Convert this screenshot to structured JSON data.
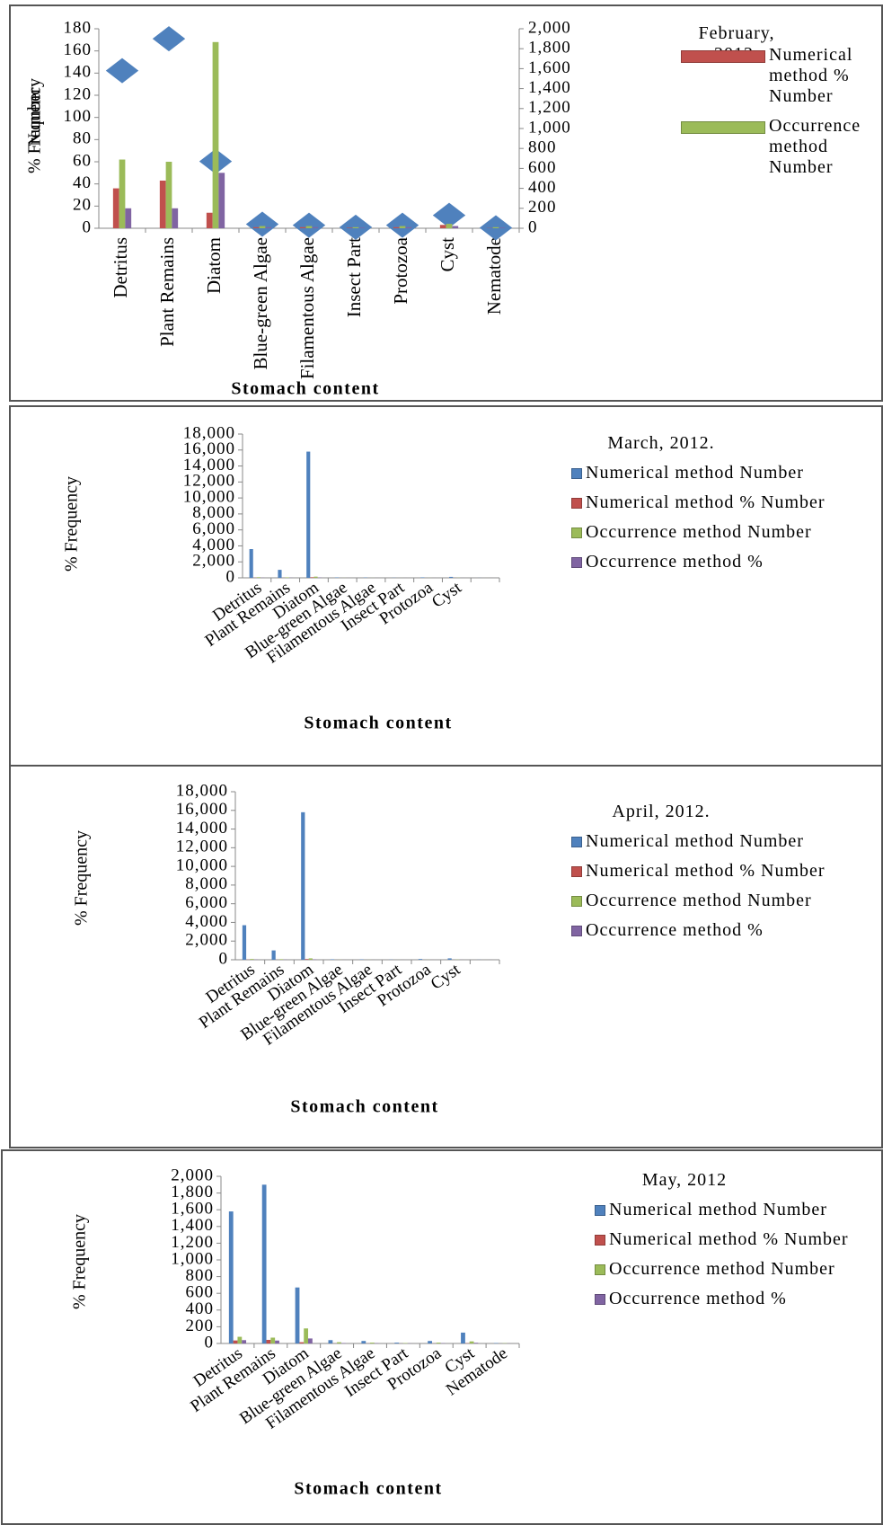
{
  "chart_data": [
    {
      "type": "bar",
      "legend_title": "February, 2012.",
      "xlabel": "Stomach content",
      "ylabel": "% Frequency",
      "y2label": "Number",
      "categories": [
        "Detritus",
        "Plant Remains",
        "Diatom",
        "Blue-green Algae",
        "Filamentous Algae",
        "Insect Part",
        "Protozoa",
        "Cyst",
        "Nematode"
      ],
      "series": [
        {
          "type": "scatter",
          "axis": "y2",
          "color": "#4f81bd",
          "values": [
            1580,
            1900,
            670,
            40,
            30,
            10,
            30,
            130,
            5
          ]
        },
        {
          "name": "Numerical method % Number",
          "color": "#c0504d",
          "values": [
            36,
            43,
            14,
            1,
            1,
            0.5,
            1,
            3,
            0.2
          ]
        },
        {
          "name": "Occurrence method Number",
          "color": "#9bbb59",
          "values": [
            62,
            60,
            168,
            2,
            2,
            1,
            2,
            4,
            1
          ]
        },
        {
          "color": "#8064a2",
          "values": [
            18,
            18,
            50,
            1,
            1,
            0.5,
            1,
            2,
            0.5
          ]
        }
      ],
      "ylim": [
        0,
        180
      ],
      "yticks": [
        0,
        20,
        40,
        60,
        80,
        100,
        120,
        140,
        160,
        180
      ],
      "y2lim": [
        0,
        2000
      ],
      "y2ticks": [
        0,
        200,
        400,
        600,
        800,
        {
          "value": 1000,
          "label": "1,000"
        },
        {
          "value": 1200,
          "label": "1,200"
        },
        {
          "value": 1400,
          "label": "1,400"
        },
        {
          "value": 1600,
          "label": "1,600"
        },
        {
          "value": 1800,
          "label": "1,800"
        },
        {
          "value": 2000,
          "label": "2,000"
        }
      ]
    },
    {
      "type": "bar",
      "legend_title": "March, 2012.",
      "xlabel": "Stomach content",
      "ylabel": "% Frequency",
      "categories": [
        "Detritus",
        "Plant Remains",
        "Diatom",
        "Blue-green Algae",
        "Filamentous Algae",
        "Insect Part",
        "Protozoa",
        "Cyst",
        null
      ],
      "series": [
        {
          "name": "Numerical method Number",
          "color": "#4f81bd",
          "values": [
            3600,
            1000,
            15800,
            50,
            40,
            20,
            60,
            120,
            10
          ]
        },
        {
          "name": "Numerical method % Number",
          "color": "#c0504d",
          "values": [
            18,
            5,
            76,
            0.3,
            0.2,
            0.1,
            0.3,
            0.6,
            0.1
          ]
        },
        {
          "name": "Occurrence method Number",
          "color": "#9bbb59",
          "values": [
            80,
            60,
            150,
            10,
            8,
            4,
            10,
            20,
            2
          ]
        },
        {
          "name": "Occurrence method %",
          "color": "#8064a2",
          "values": [
            25,
            20,
            45,
            3,
            2,
            1,
            3,
            6,
            1
          ]
        }
      ],
      "ylim": [
        0,
        18000
      ],
      "yticks": [
        0,
        {
          "value": 2000,
          "label": "2,000"
        },
        {
          "value": 4000,
          "label": "4,000"
        },
        {
          "value": 6000,
          "label": "6,000"
        },
        {
          "value": 8000,
          "label": "8,000"
        },
        {
          "value": 10000,
          "label": "10,000"
        },
        {
          "value": 12000,
          "label": "12,000"
        },
        {
          "value": 14000,
          "label": "14,000"
        },
        {
          "value": 16000,
          "label": "16,000"
        },
        {
          "value": 18000,
          "label": "18,000"
        }
      ]
    },
    {
      "type": "bar",
      "legend_title": "April, 2012.",
      "xlabel": "Stomach content",
      "ylabel": "% Frequency",
      "categories": [
        "Detritus",
        "Plant Remains",
        "Diatom",
        "Blue-green Algae",
        "Filamentous Algae",
        "Insect Part",
        "Protozoa",
        "Cyst",
        null
      ],
      "series": [
        {
          "name": "Numerical method Number",
          "color": "#4f81bd",
          "values": [
            3700,
            1000,
            15800,
            50,
            40,
            20,
            80,
            150,
            10
          ]
        },
        {
          "name": "Numerical method % Number",
          "color": "#c0504d",
          "values": [
            18,
            5,
            76,
            0.3,
            0.2,
            0.1,
            0.4,
            0.7,
            0.1
          ]
        },
        {
          "name": "Occurrence method Number",
          "color": "#9bbb59",
          "values": [
            80,
            60,
            150,
            10,
            8,
            4,
            10,
            20,
            2
          ]
        },
        {
          "name": "Occurrence method %",
          "color": "#8064a2",
          "values": [
            25,
            20,
            45,
            3,
            2,
            1,
            3,
            6,
            1
          ]
        }
      ],
      "ylim": [
        0,
        18000
      ],
      "yticks": [
        0,
        {
          "value": 2000,
          "label": "2,000"
        },
        {
          "value": 4000,
          "label": "4,000"
        },
        {
          "value": 6000,
          "label": "6,000"
        },
        {
          "value": 8000,
          "label": "8,000"
        },
        {
          "value": 10000,
          "label": "10,000"
        },
        {
          "value": 12000,
          "label": "12,000"
        },
        {
          "value": 14000,
          "label": "14,000"
        },
        {
          "value": 16000,
          "label": "16,000"
        },
        {
          "value": 18000,
          "label": "18,000"
        }
      ]
    },
    {
      "type": "bar",
      "legend_title": "May, 2012",
      "xlabel": "Stomach content",
      "ylabel": "% Frequency",
      "categories": [
        "Detritus",
        "Plant Remains",
        "Diatom",
        "Blue-green Algae",
        "Filamentous Algae",
        "Insect Part",
        "Protozoa",
        "Cyst",
        "Nematode"
      ],
      "series": [
        {
          "name": "Numerical method Number",
          "color": "#4f81bd",
          "values": [
            1580,
            1900,
            670,
            40,
            30,
            10,
            30,
            130,
            5
          ]
        },
        {
          "name": "Numerical method % Number",
          "color": "#c0504d",
          "values": [
            36,
            43,
            15,
            1,
            1,
            0.5,
            1,
            3,
            0.2
          ]
        },
        {
          "name": "Occurrence method Number",
          "color": "#9bbb59",
          "values": [
            80,
            70,
            180,
            15,
            10,
            5,
            10,
            25,
            3
          ]
        },
        {
          "name": "Occurrence method %",
          "color": "#8064a2",
          "values": [
            40,
            35,
            60,
            5,
            4,
            2,
            4,
            8,
            1
          ]
        }
      ],
      "ylim": [
        0,
        2000
      ],
      "yticks": [
        0,
        200,
        400,
        600,
        800,
        {
          "value": 1000,
          "label": "1,000"
        },
        {
          "value": 1200,
          "label": "1,200"
        },
        {
          "value": 1400,
          "label": "1,400"
        },
        {
          "value": 1600,
          "label": "1,600"
        },
        {
          "value": 1800,
          "label": "1,800"
        },
        {
          "value": 2000,
          "label": "2,000"
        }
      ]
    }
  ]
}
